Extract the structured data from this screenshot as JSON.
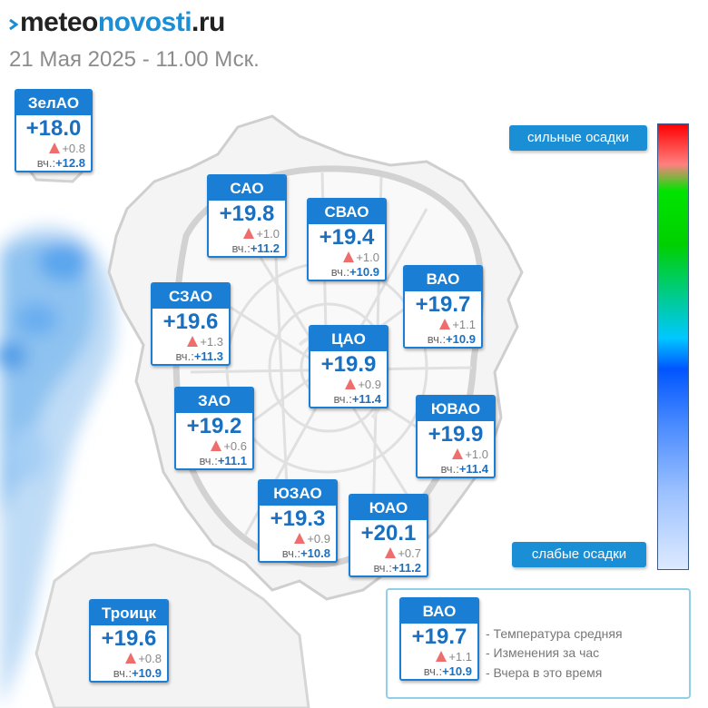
{
  "header": {
    "logo_part1": "meteo",
    "logo_part2": "novosti",
    "logo_part3": ".ru",
    "datetime": "21 Мая 2025 - 11.00 Мск."
  },
  "districts": [
    {
      "name": "ЗелАО",
      "temp": "+18.0",
      "change": "+0.8",
      "yesterday_label": "вч.:",
      "yesterday": "+12.8"
    },
    {
      "name": "САО",
      "temp": "+19.8",
      "change": "+1.0",
      "yesterday_label": "вч.:",
      "yesterday": "+11.2"
    },
    {
      "name": "СВАО",
      "temp": "+19.4",
      "change": "+1.0",
      "yesterday_label": "вч.:",
      "yesterday": "+10.9"
    },
    {
      "name": "ВАО",
      "temp": "+19.7",
      "change": "+1.1",
      "yesterday_label": "вч.:",
      "yesterday": "+10.9"
    },
    {
      "name": "СЗАО",
      "temp": "+19.6",
      "change": "+1.3",
      "yesterday_label": "вч.:",
      "yesterday": "+11.3"
    },
    {
      "name": "ЦАО",
      "temp": "+19.9",
      "change": "+0.9",
      "yesterday_label": "вч.:",
      "yesterday": "+11.4"
    },
    {
      "name": "ЗАО",
      "temp": "+19.2",
      "change": "+0.6",
      "yesterday_label": "вч.:",
      "yesterday": "+11.1"
    },
    {
      "name": "ЮВАО",
      "temp": "+19.9",
      "change": "+1.0",
      "yesterday_label": "вч.:",
      "yesterday": "+11.4"
    },
    {
      "name": "ЮЗАО",
      "temp": "+19.3",
      "change": "+0.9",
      "yesterday_label": "вч.:",
      "yesterday": "+10.8"
    },
    {
      "name": "ЮАО",
      "temp": "+20.1",
      "change": "+0.7",
      "yesterday_label": "вч.:",
      "yesterday": "+11.2"
    },
    {
      "name": "Троицк",
      "temp": "+19.6",
      "change": "+0.8",
      "yesterday_label": "вч.:",
      "yesterday": "+10.9"
    }
  ],
  "precip_scale": {
    "top_label": "сильные осадки",
    "bottom_label": "слабые осадки"
  },
  "legend": {
    "sample": {
      "name": "ВАО",
      "temp": "+19.7",
      "change": "+1.1",
      "yesterday_label": "вч.:",
      "yesterday": "+10.9"
    },
    "line1": "- Температура средняя",
    "line2": "- Изменения за час",
    "line3": "- Вчера в это время"
  },
  "colors": {
    "card_blue": "#1a7fd4",
    "temp_blue": "#1a6fc0",
    "rise_arrow": "#ee6e6e",
    "logo_accent": "#1a8fd6"
  }
}
